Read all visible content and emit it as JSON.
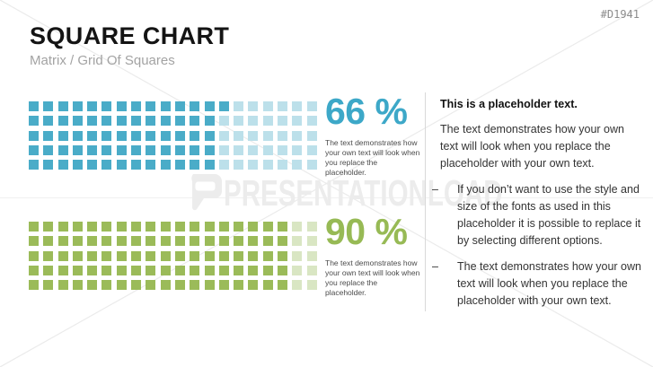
{
  "page": {
    "doc_id": "#D1941"
  },
  "header": {
    "title": "SQUARE CHART",
    "subtitle": "Matrix / Grid Of Squares"
  },
  "watermark": {
    "text": "PRESENTATIONLOAD"
  },
  "chart_data": [
    {
      "type": "heatmap",
      "subtype": "waffle-square-grid",
      "title": "66 %",
      "value_percent": 66,
      "rows": 5,
      "cols": 20,
      "total_squares": 100,
      "filled_squares": 66,
      "fill_order": "column-major, left to right, top to bottom",
      "color_filled": "#4aacc8",
      "color_empty": "#bce0ea",
      "caption": "The text demonstrates how your own text will look when you replace the placeholder."
    },
    {
      "type": "heatmap",
      "subtype": "waffle-square-grid",
      "title": "90 %",
      "value_percent": 90,
      "rows": 5,
      "cols": 20,
      "total_squares": 100,
      "filled_squares": 90,
      "fill_order": "column-major, left to right, top to bottom",
      "color_filled": "#9bbb59",
      "color_empty": "#d9e6c3",
      "caption": "The text demonstrates how your own text will look when you replace the placeholder."
    }
  ],
  "right_panel": {
    "heading": "This is a placeholder text.",
    "paragraph": "The text demonstrates how your own text will look when you replace the placeholder with your own text.",
    "bullets": [
      {
        "marker": "–",
        "text": "If you don’t want to use the style and size of the fonts as used in this placeholder it is possible to replace it by selecting different options."
      },
      {
        "marker": "–",
        "text": "The text demonstrates how your own text will look when you replace the placeholder with your own text."
      }
    ]
  },
  "colors": {
    "accent_teal": "#4aacc8",
    "accent_teal_light": "#bce0ea",
    "accent_green": "#9bbb59",
    "accent_green_light": "#d9e6c3",
    "percent_teal_text": "#3da8c8",
    "percent_green_text": "#97ba55",
    "divider": "#d9d9d9",
    "watermark": "#ececec"
  }
}
